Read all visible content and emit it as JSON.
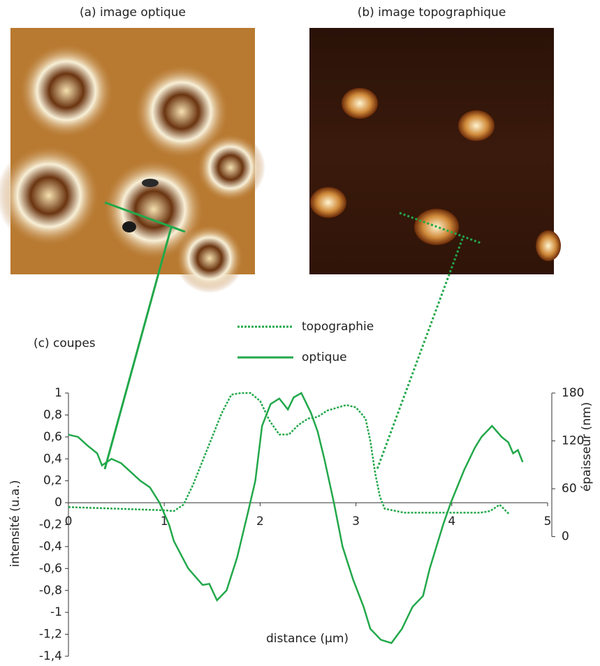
{
  "panels": {
    "optical_title": "(a) image optique",
    "topo_title": "(b) image topographique"
  },
  "chart_data": {
    "type": "line",
    "title": "(c) coupes",
    "xlabel": "distance (µm)",
    "ylabel": "intensité (u.a.)",
    "y2label": "épaisseur (nm)",
    "xlim": [
      0,
      5
    ],
    "xticks": [
      0,
      1,
      2,
      3,
      4,
      5
    ],
    "ylim": [
      -1.4,
      1
    ],
    "yticks": [
      {
        "value": -1.4,
        "label": "-1,4"
      },
      {
        "value": -1.2,
        "label": "-1,2"
      },
      -1,
      {
        "value": -0.8,
        "label": "-0,8"
      },
      {
        "value": -0.6,
        "label": "-0,6"
      },
      {
        "value": -0.4,
        "label": "-0,4"
      },
      {
        "value": -0.2,
        "label": "-0,2"
      },
      0,
      {
        "value": 0.2,
        "label": "0,2"
      },
      {
        "value": 0.4,
        "label": "0,4"
      },
      {
        "value": 0.6,
        "label": "0,6"
      },
      {
        "value": 0.8,
        "label": "0,8"
      },
      1
    ],
    "y2lim": [
      -150,
      180
    ],
    "y2ticks": [
      0,
      60,
      120,
      180
    ],
    "series": [
      {
        "name": "topographie",
        "color": "#22a84a",
        "style": "dotted",
        "axis": "y2",
        "x": [
          0,
          0.5,
          1.0,
          1.1,
          1.2,
          1.3,
          1.4,
          1.5,
          1.6,
          1.7,
          1.8,
          1.9,
          2.0,
          2.1,
          2.2,
          2.3,
          2.4,
          2.5,
          2.6,
          2.7,
          2.9,
          3.0,
          3.1,
          3.15,
          3.2,
          3.25,
          3.3,
          3.5,
          4.0,
          4.3,
          4.4,
          4.5,
          4.6
        ],
        "values": [
          37,
          35,
          33,
          32,
          40,
          65,
          95,
          125,
          155,
          178,
          180,
          180,
          170,
          145,
          128,
          128,
          140,
          148,
          150,
          158,
          165,
          162,
          148,
          120,
          80,
          50,
          35,
          30,
          30,
          30,
          32,
          40,
          28
        ]
      },
      {
        "name": "optique",
        "color": "#22a84a",
        "style": "solid",
        "axis": "y",
        "x": [
          0,
          0.1,
          0.2,
          0.3,
          0.35,
          0.45,
          0.55,
          0.65,
          0.75,
          0.85,
          0.95,
          1.05,
          1.1,
          1.25,
          1.4,
          1.47,
          1.55,
          1.65,
          1.76,
          1.87,
          1.95,
          2.02,
          2.11,
          2.2,
          2.29,
          2.35,
          2.43,
          2.53,
          2.6,
          2.67,
          2.77,
          2.86,
          2.97,
          3.08,
          3.15,
          3.26,
          3.37,
          3.48,
          3.59,
          3.7,
          3.77,
          3.84,
          3.91,
          3.99,
          4.06,
          4.13,
          4.24,
          4.31,
          4.42,
          4.52,
          4.59,
          4.64,
          4.69,
          4.74
        ],
        "values": [
          0.62,
          0.6,
          0.52,
          0.45,
          0.34,
          0.4,
          0.36,
          0.28,
          0.2,
          0.14,
          0.0,
          -0.2,
          -0.35,
          -0.6,
          -0.75,
          -0.74,
          -0.89,
          -0.8,
          -0.5,
          -0.1,
          0.2,
          0.7,
          0.9,
          0.95,
          0.85,
          0.96,
          1.0,
          0.82,
          0.65,
          0.4,
          0.0,
          -0.4,
          -0.7,
          -0.95,
          -1.15,
          -1.25,
          -1.28,
          -1.15,
          -0.95,
          -0.85,
          -0.6,
          -0.4,
          -0.2,
          0.0,
          0.15,
          0.3,
          0.5,
          0.6,
          0.7,
          0.6,
          0.55,
          0.45,
          0.48,
          0.37
        ]
      }
    ]
  }
}
